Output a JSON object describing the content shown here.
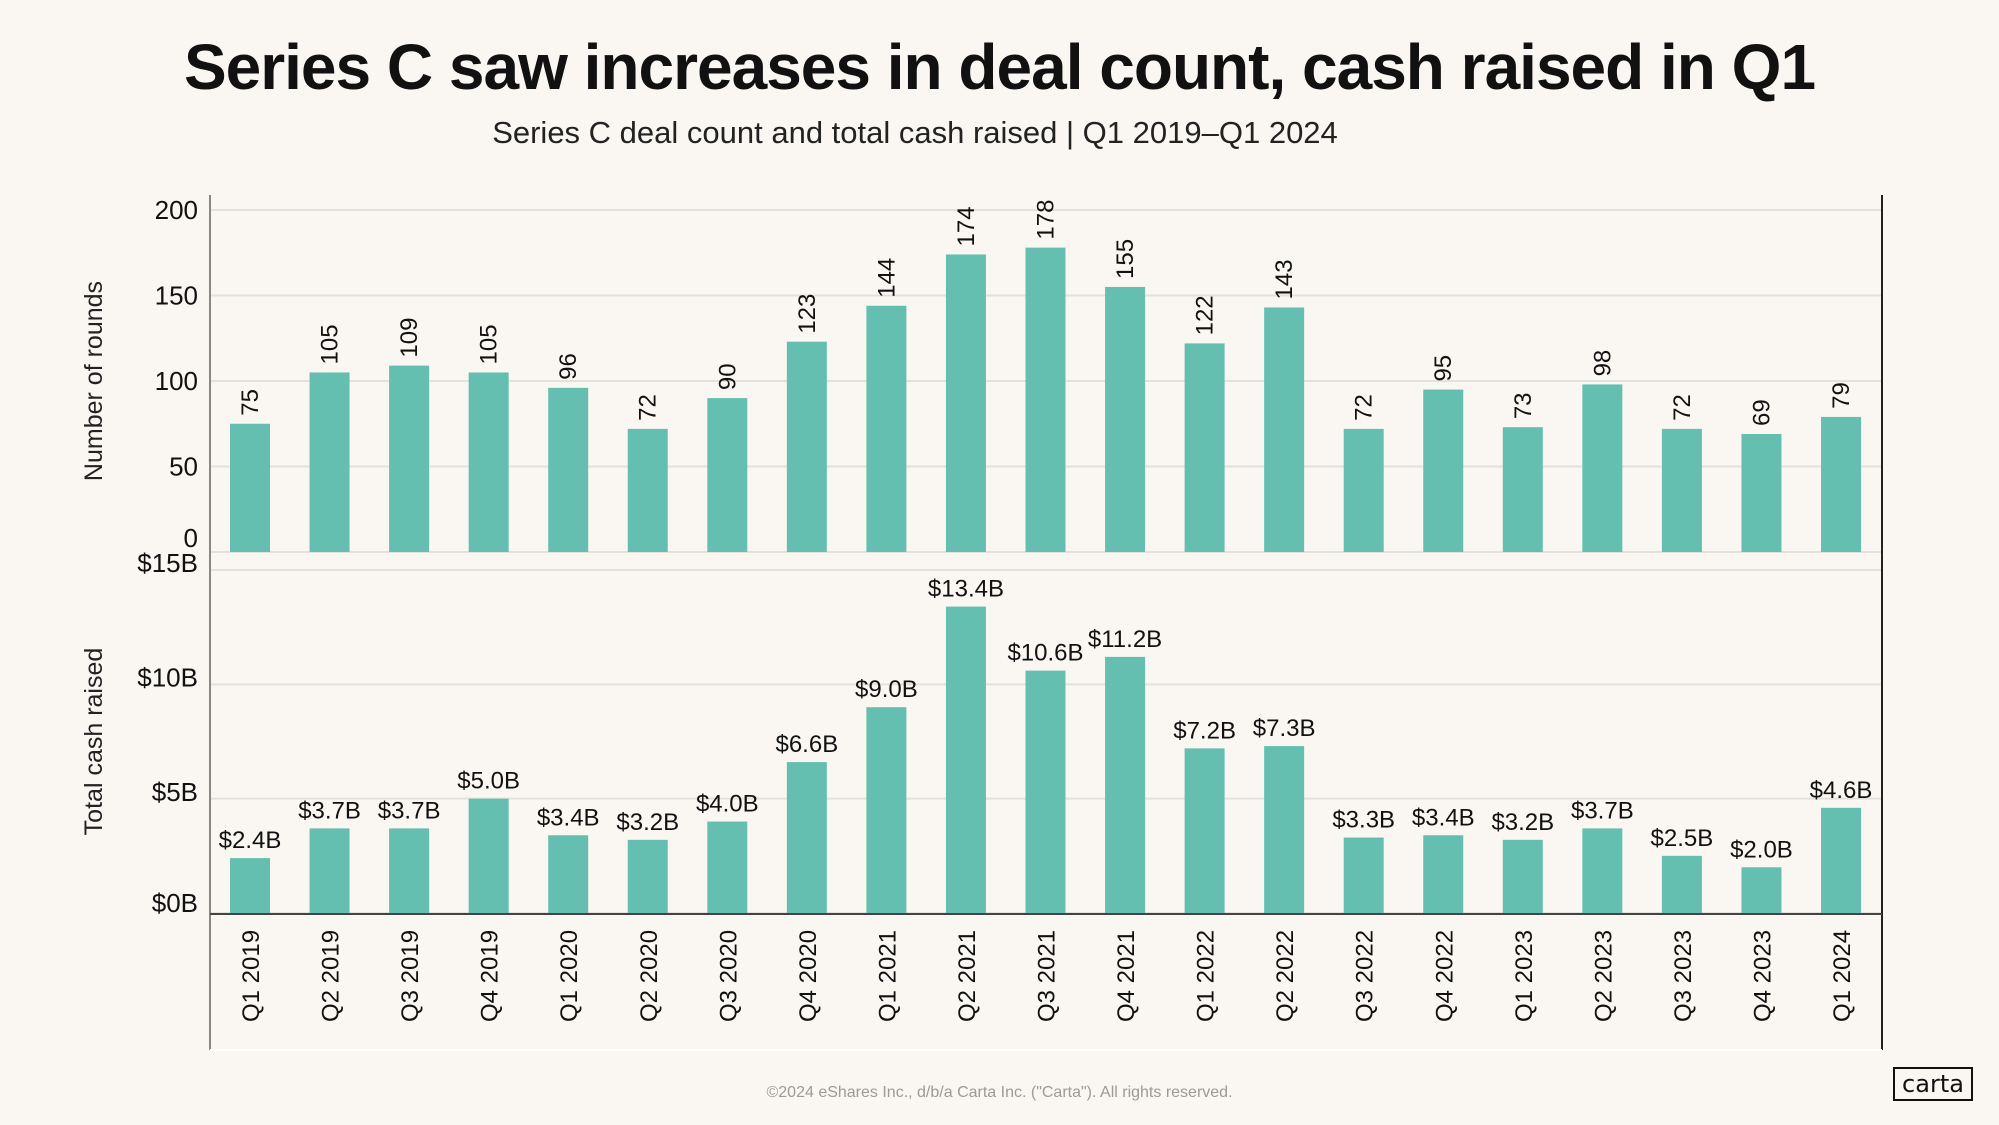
{
  "header": {
    "title": "Series C saw increases in deal count, cash raised in Q1",
    "subtitle": "Series C deal count and total cash raised | Q1 2019–Q1 2024"
  },
  "footer": {
    "copyright": "©2024 eShares Inc., d/b/a Carta Inc. (\"Carta\"). All rights reserved.",
    "logo": "carta"
  },
  "colors": {
    "bar": "#65bfb0",
    "background": "#faf7f2",
    "grid": "#e4e1dc"
  },
  "chart_data": [
    {
      "type": "bar",
      "ylabel": "Number of rounds",
      "ylim": [
        0,
        200
      ],
      "yticks": [
        "0",
        "50",
        "100",
        "150",
        "200"
      ],
      "grid": true,
      "categories": [
        "Q1 2019",
        "Q2 2019",
        "Q3 2019",
        "Q4 2019",
        "Q1 2020",
        "Q2 2020",
        "Q3 2020",
        "Q4 2020",
        "Q1 2021",
        "Q2 2021",
        "Q3 2021",
        "Q4 2021",
        "Q1 2022",
        "Q2 2022",
        "Q3 2022",
        "Q4 2022",
        "Q1 2023",
        "Q2 2023",
        "Q3 2023",
        "Q4 2023",
        "Q1 2024"
      ],
      "values": [
        75,
        105,
        109,
        105,
        96,
        72,
        90,
        123,
        144,
        174,
        178,
        155,
        122,
        143,
        72,
        95,
        73,
        98,
        72,
        69,
        79
      ],
      "data_labels": [
        "75",
        "105",
        "109",
        "105",
        "96",
        "72",
        "90",
        "123",
        "144",
        "174",
        "178",
        "155",
        "122",
        "143",
        "72",
        "95",
        "73",
        "98",
        "72",
        "69",
        "79"
      ]
    },
    {
      "type": "bar",
      "ylabel": "Total cash raised",
      "ylim": [
        0,
        15
      ],
      "yticks": [
        "$0B",
        "$5B",
        "$10B",
        "$15B"
      ],
      "grid": true,
      "categories": [
        "Q1 2019",
        "Q2 2019",
        "Q3 2019",
        "Q4 2019",
        "Q1 2020",
        "Q2 2020",
        "Q3 2020",
        "Q4 2020",
        "Q1 2021",
        "Q2 2021",
        "Q3 2021",
        "Q4 2021",
        "Q1 2022",
        "Q2 2022",
        "Q3 2022",
        "Q4 2022",
        "Q1 2023",
        "Q2 2023",
        "Q3 2023",
        "Q4 2023",
        "Q1 2024"
      ],
      "values": [
        2.4,
        3.7,
        3.7,
        5.0,
        3.4,
        3.2,
        4.0,
        6.6,
        9.0,
        13.4,
        10.6,
        11.2,
        7.2,
        7.3,
        3.3,
        3.4,
        3.2,
        3.7,
        2.5,
        2.0,
        4.6
      ],
      "data_labels": [
        "$2.4B",
        "$3.7B",
        "$3.7B",
        "$5.0B",
        "$3.4B",
        "$3.2B",
        "$4.0B",
        "$6.6B",
        "$9.0B",
        "$13.4B",
        "$10.6B",
        "$11.2B",
        "$7.2B",
        "$7.3B",
        "$3.3B",
        "$3.4B",
        "$3.2B",
        "$3.7B",
        "$2.5B",
        "$2.0B",
        "$4.6B"
      ]
    }
  ]
}
